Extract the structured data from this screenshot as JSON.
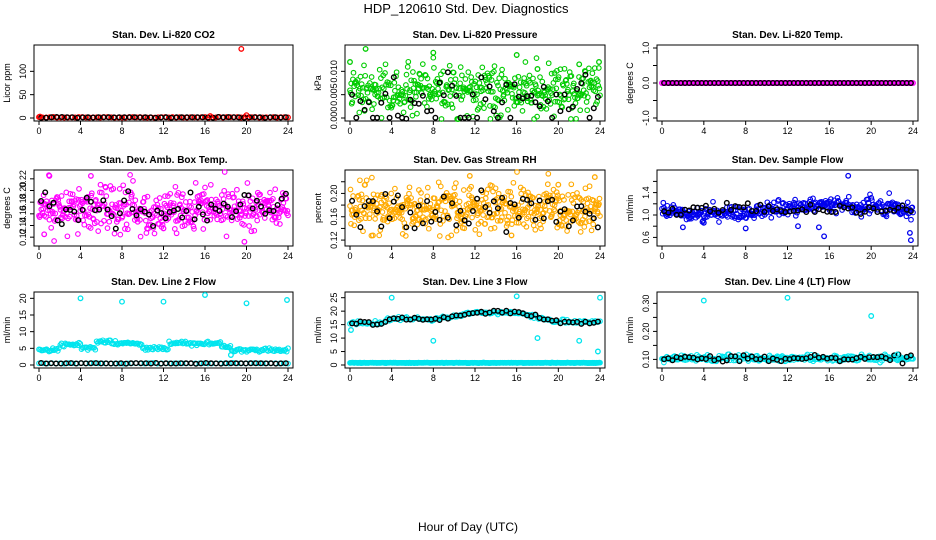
{
  "figure": {
    "title": "HDP_120610  Std. Dev. Diagnostics",
    "xlabel": "Hour of Day (UTC)"
  },
  "colors": {
    "frame": "#000000",
    "overlay_points": "#000000",
    "red": "#ff0000",
    "green": "#00cc00",
    "magenta": "#ff00ff",
    "orange": "#ffaa00",
    "blue": "#0000ee",
    "cyan": "#00e5ee"
  },
  "chart_data": [
    {
      "type": "scatter",
      "title": "Stan. Dev. Li-820 CO2",
      "ylabel": "Licor ppm",
      "xlim": [
        0,
        24
      ],
      "ylim": [
        0,
        150
      ],
      "xticks": [
        0,
        4,
        8,
        12,
        16,
        20,
        24
      ],
      "yticks": [
        0,
        50,
        100
      ],
      "color": "red",
      "mode": "flat",
      "level": 1.5,
      "noise": 0.4,
      "count": 70,
      "dense_markers": true,
      "overlay_level": 1.5,
      "overlay_noise": 0.3,
      "overlay_count": 48,
      "outliers": [
        [
          19.5,
          148
        ],
        [
          20.0,
          6
        ],
        [
          16.5,
          4
        ],
        [
          0.1,
          3
        ]
      ]
    },
    {
      "type": "scatter",
      "title": "Stan. Dev. Li-820 Pressure",
      "ylabel": "kPa",
      "xlim": [
        0,
        24
      ],
      "ylim": [
        0,
        0.015
      ],
      "xticks": [
        0,
        4,
        8,
        12,
        16,
        20,
        24
      ],
      "yticks": [
        0.0,
        0.005,
        0.01
      ],
      "ytick_labels": [
        "0.000",
        "0.005",
        "0.010"
      ],
      "color": "green",
      "mode": "flat",
      "level": 0.0055,
      "noise": 0.0025,
      "count": 430,
      "overlay_level": 0.005,
      "overlay_noise": 0.0025,
      "overlay_count": 60,
      "outliers": [
        [
          0.0,
          0.012
        ],
        [
          1.5,
          0.0148
        ],
        [
          8.0,
          0.014
        ],
        [
          16.0,
          0.0135
        ],
        [
          18.0,
          0.0105
        ],
        [
          23.9,
          0.012
        ],
        [
          22.0,
          0.0115
        ]
      ]
    },
    {
      "type": "scatter",
      "title": "Stan. Dev. Li-820 Temp.",
      "ylabel": "degrees C",
      "xlim": [
        0,
        24
      ],
      "ylim": [
        -1,
        1
      ],
      "xticks": [
        0,
        4,
        8,
        12,
        16,
        20,
        24
      ],
      "yticks": [
        -1.0,
        -0.5,
        0.0,
        0.5,
        1.0
      ],
      "ytick_labels": [
        "-1.0",
        "",
        "0.0",
        "",
        "1.0"
      ],
      "color": "magenta",
      "mode": "flat",
      "level": 0.0,
      "noise": 0.0,
      "count": 160,
      "dense_markers": true,
      "overlay_level": 0.0,
      "overlay_noise": 0.0,
      "overlay_count": 60,
      "outliers": []
    },
    {
      "type": "scatter",
      "title": "Stan. Dev. Amb. Box Temp.",
      "ylabel": "degrees C",
      "xlim": [
        0,
        24
      ],
      "ylim": [
        0.11,
        0.23
      ],
      "xticks": [
        0,
        4,
        8,
        12,
        16,
        20,
        24
      ],
      "yticks": [
        0.12,
        0.14,
        0.16,
        0.18,
        0.2,
        0.22
      ],
      "ytick_labels": [
        "0.12",
        "0.14",
        "0.16",
        "0.18",
        "0.20",
        "0.22"
      ],
      "color": "magenta",
      "mode": "flat",
      "level": 0.168,
      "noise": 0.02,
      "count": 430,
      "overlay_level": 0.17,
      "overlay_noise": 0.018,
      "overlay_count": 60,
      "outliers": [
        [
          0.5,
          0.125
        ],
        [
          12.0,
          0.135
        ],
        [
          19.8,
          0.112
        ],
        [
          1.0,
          0.225
        ],
        [
          5.0,
          0.225
        ]
      ]
    },
    {
      "type": "scatter",
      "title": "Stan. Dev. Gas Stream RH",
      "ylabel": "percent",
      "xlim": [
        0,
        24
      ],
      "ylim": [
        0.115,
        0.235
      ],
      "xticks": [
        0,
        4,
        8,
        12,
        16,
        20,
        24
      ],
      "yticks": [
        0.12,
        0.14,
        0.16,
        0.18,
        0.2,
        0.22
      ],
      "ytick_labels": [
        "0.12",
        "",
        "0.16",
        "",
        "0.20",
        ""
      ],
      "color": "orange",
      "mode": "flat",
      "level": 0.172,
      "noise": 0.02,
      "count": 480,
      "overlay_level": 0.17,
      "overlay_noise": 0.017,
      "overlay_count": 60,
      "outliers": [
        [
          2.2,
          0.128
        ],
        [
          15.5,
          0.128
        ],
        [
          20.0,
          0.215
        ],
        [
          11.5,
          0.23
        ],
        [
          23.5,
          0.228
        ]
      ]
    },
    {
      "type": "scatter",
      "title": "Stan. Dev. Sample Flow",
      "ylabel": "ml/min",
      "xlim": [
        0,
        24
      ],
      "ylim": [
        0.5,
        1.75
      ],
      "xticks": [
        0,
        4,
        8,
        12,
        16,
        20,
        24
      ],
      "yticks": [
        0.6,
        0.8,
        1.0,
        1.2,
        1.4,
        1.6
      ],
      "ytick_labels": [
        "0.6",
        "",
        "1.0",
        "",
        "1.4",
        ""
      ],
      "color": "blue",
      "mode": "wave",
      "level": 1.1,
      "amp": 0.07,
      "noise": 0.07,
      "count": 380,
      "overlay_level": 1.1,
      "overlay_noise": 0.05,
      "overlay_count": 60,
      "outliers": [
        [
          2.0,
          0.78
        ],
        [
          4.0,
          0.86
        ],
        [
          8.0,
          0.76
        ],
        [
          13.0,
          0.8
        ],
        [
          15.0,
          0.78
        ],
        [
          15.5,
          0.62
        ],
        [
          17.8,
          1.7
        ],
        [
          23.8,
          0.55
        ],
        [
          23.7,
          0.68
        ]
      ]
    },
    {
      "type": "scatter",
      "title": "Stan. Dev. Line 2 Flow",
      "ylabel": "ml/min",
      "xlim": [
        0,
        24
      ],
      "ylim": [
        0,
        21
      ],
      "xticks": [
        0,
        4,
        8,
        12,
        16,
        20,
        24
      ],
      "yticks": [
        0,
        5,
        10,
        15,
        20
      ],
      "ytick_labels": [
        "0",
        "5",
        "10",
        "15",
        "20"
      ],
      "color": "cyan",
      "mode": "steps",
      "steps": [
        [
          0,
          4.5
        ],
        [
          2,
          6.0
        ],
        [
          4,
          5.0
        ],
        [
          5.5,
          7.0
        ],
        [
          7,
          6.5
        ],
        [
          8,
          6.5
        ],
        [
          10,
          5.0
        ],
        [
          12.5,
          6.5
        ],
        [
          15,
          6.5
        ],
        [
          17.5,
          5.5
        ],
        [
          18.5,
          4.5
        ],
        [
          24,
          4.5
        ]
      ],
      "noise": 0.3,
      "count": 200,
      "baseline_count": 60,
      "baseline_level": 0.5,
      "overlay_level": 0.5,
      "overlay_noise": 0.05,
      "overlay_count": 50,
      "outliers": [
        [
          4.0,
          20
        ],
        [
          8.0,
          19
        ],
        [
          12.0,
          19
        ],
        [
          16.0,
          21
        ],
        [
          20.0,
          18.5
        ],
        [
          23.9,
          19.5
        ],
        [
          18.5,
          3
        ]
      ]
    },
    {
      "type": "scatter",
      "title": "Stan. Dev. Line 3 Flow",
      "ylabel": "ml/min",
      "xlim": [
        0,
        24
      ],
      "ylim": [
        0,
        26
      ],
      "xticks": [
        0,
        4,
        8,
        12,
        16,
        20,
        24
      ],
      "yticks": [
        0,
        5,
        10,
        15,
        20,
        25
      ],
      "ytick_labels": [
        "0",
        "5",
        "10",
        "15",
        "20",
        "25"
      ],
      "color": "cyan",
      "mode": "curve",
      "curve": [
        [
          0,
          15.5
        ],
        [
          3,
          15.5
        ],
        [
          4,
          17.5
        ],
        [
          8,
          17.0
        ],
        [
          12,
          19.5
        ],
        [
          16,
          19.5
        ],
        [
          20,
          16.0
        ],
        [
          24,
          16.0
        ]
      ],
      "noise": 0.3,
      "count": 160,
      "baseline_count": 300,
      "baseline_level": 0.8,
      "overlay_level": 0,
      "overlay_noise": 0.4,
      "overlay_count": 60,
      "overlay_follow": true,
      "outliers": [
        [
          4.0,
          25
        ],
        [
          16.0,
          25.5
        ],
        [
          18.0,
          10
        ],
        [
          24.0,
          25
        ],
        [
          23.8,
          5
        ],
        [
          0.1,
          13
        ],
        [
          8.0,
          9
        ],
        [
          22.0,
          9
        ]
      ]
    },
    {
      "type": "scatter",
      "title": "Stan. Dev. Line 4 (LT) Flow",
      "ylabel": "ml/min",
      "xlim": [
        0,
        24
      ],
      "ylim": [
        0.08,
        0.33
      ],
      "xticks": [
        0,
        4,
        8,
        12,
        16,
        20,
        24
      ],
      "yticks": [
        0.1,
        0.15,
        0.2,
        0.25,
        0.3
      ],
      "ytick_labels": [
        "0.10",
        "",
        "0.20",
        "",
        "0.30"
      ],
      "color": "cyan",
      "mode": "flat",
      "level": 0.104,
      "noise": 0.006,
      "count": 260,
      "overlay_level": 0.104,
      "overlay_noise": 0.006,
      "overlay_count": 60,
      "outliers": [
        [
          4.0,
          0.31
        ],
        [
          12.0,
          0.32
        ],
        [
          20.0,
          0.255
        ],
        [
          22.5,
          0.118
        ]
      ]
    }
  ]
}
